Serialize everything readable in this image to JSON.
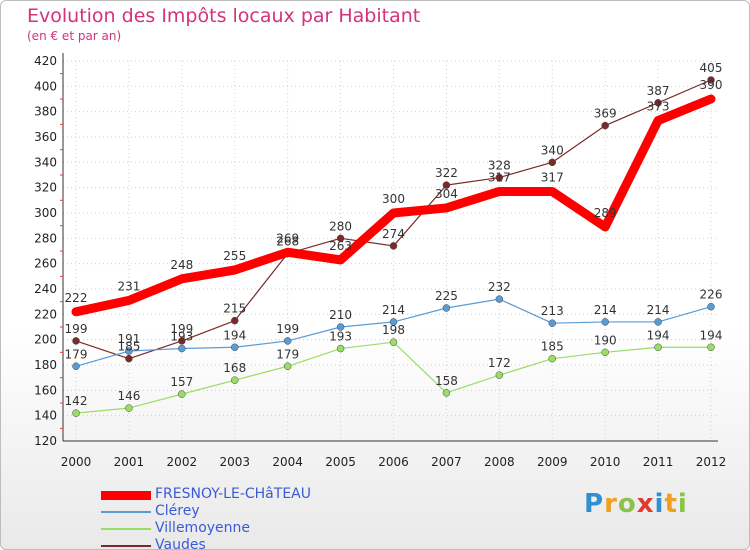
{
  "title": "Evolution des Impôts locaux par Habitant",
  "subtitle": "(en € et par an)",
  "logo": {
    "text": "Proxiti",
    "letters": [
      {
        "ch": "P",
        "color": "#2f8fd0"
      },
      {
        "ch": "r",
        "color": "#f0a020"
      },
      {
        "ch": "o",
        "color": "#8bc34a"
      },
      {
        "ch": "x",
        "color": "#e03a2f"
      },
      {
        "ch": "i",
        "color": "#2f8fd0"
      },
      {
        "ch": "t",
        "color": "#f0a020"
      },
      {
        "ch": "i",
        "color": "#8bc34a"
      }
    ]
  },
  "chart_data": {
    "type": "line",
    "x": [
      "2000",
      "2001",
      "2002",
      "2003",
      "2004",
      "2005",
      "2006",
      "2007",
      "2008",
      "2009",
      "2010",
      "2011",
      "2012"
    ],
    "ylim": [
      120,
      420
    ],
    "yticks": [
      120,
      140,
      160,
      180,
      200,
      220,
      240,
      260,
      280,
      300,
      320,
      340,
      360,
      380,
      400,
      420
    ],
    "grid": true,
    "legend_position": "bottom-left",
    "series": [
      {
        "name": "FRESNOY-LE-CHâTEAU",
        "color": "#ff0000",
        "values": [
          222,
          231,
          248,
          255,
          269,
          263,
          300,
          304,
          317,
          317,
          289,
          373,
          390
        ],
        "bold": true
      },
      {
        "name": "Clérey",
        "color": "#5b9bd5",
        "values": [
          179,
          191,
          193,
          194,
          199,
          210,
          214,
          225,
          232,
          213,
          214,
          214,
          226
        ]
      },
      {
        "name": "Villemoyenne",
        "color": "#99dd66",
        "values": [
          142,
          146,
          157,
          168,
          179,
          193,
          198,
          158,
          172,
          185,
          190,
          194,
          194
        ]
      },
      {
        "name": "Vaudes",
        "color": "#7b2a2a",
        "values": [
          199,
          185,
          199,
          215,
          268,
          280,
          274,
          322,
          328,
          340,
          369,
          387,
          405
        ]
      }
    ]
  }
}
